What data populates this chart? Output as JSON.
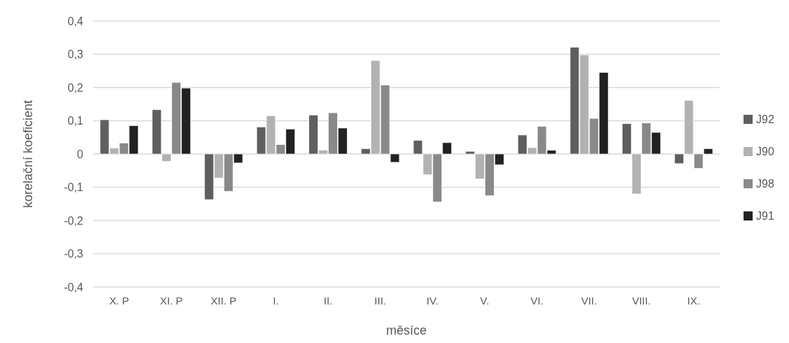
{
  "chart_data": {
    "type": "bar",
    "xlabel": "měsíce",
    "ylabel": "korelační koeficient",
    "categories": [
      "X. P",
      "XI. P",
      "XII. P",
      "I.",
      "II.",
      "III.",
      "IV.",
      "V.",
      "VI.",
      "VII.",
      "VIII.",
      "IX."
    ],
    "series": [
      {
        "name": "J92",
        "color": "#5f5f5f",
        "values": [
          0.103,
          0.133,
          -0.137,
          0.081,
          0.117,
          0.016,
          0.041,
          0.008,
          0.057,
          0.321,
          0.091,
          -0.029
        ]
      },
      {
        "name": "J90",
        "color": "#b2b2b2",
        "values": [
          0.018,
          -0.022,
          -0.072,
          0.115,
          0.011,
          0.281,
          -0.062,
          -0.075,
          0.019,
          0.298,
          -0.12,
          0.161
        ]
      },
      {
        "name": "J98",
        "color": "#898989",
        "values": [
          0.033,
          0.215,
          -0.112,
          0.028,
          0.124,
          0.207,
          -0.144,
          -0.125,
          0.083,
          0.107,
          0.093,
          -0.043
        ]
      },
      {
        "name": "J91",
        "color": "#222222",
        "values": [
          0.085,
          0.198,
          -0.027,
          0.075,
          0.078,
          -0.025,
          0.034,
          -0.032,
          0.011,
          0.245,
          0.065,
          0.016
        ]
      }
    ],
    "ylim": [
      -0.4,
      0.4
    ],
    "yticks": [
      {
        "value": -0.4,
        "label": "-0,4"
      },
      {
        "value": -0.3,
        "label": "-0,3"
      },
      {
        "value": -0.2,
        "label": "-0,2"
      },
      {
        "value": -0.1,
        "label": "-0,1"
      },
      {
        "value": 0,
        "label": "0"
      },
      {
        "value": 0.1,
        "label": "0,1"
      },
      {
        "value": 0.2,
        "label": "0,2"
      },
      {
        "value": 0.3,
        "label": "0,3"
      },
      {
        "value": 0.4,
        "label": "0,4"
      }
    ],
    "grid": "y",
    "legend": "right"
  }
}
